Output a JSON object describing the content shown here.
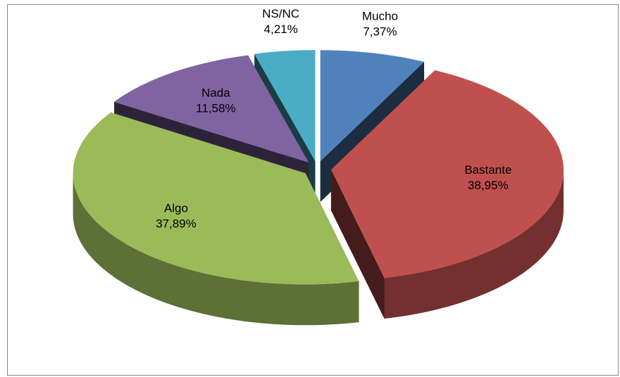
{
  "chart_data": {
    "type": "pie3d",
    "categories": [
      "Mucho",
      "Bastante",
      "Algo",
      "Nada",
      "NS/NC"
    ],
    "values": [
      7.37,
      38.95,
      37.89,
      11.58,
      4.21
    ],
    "value_labels": [
      "7,37%",
      "38,95%",
      "37,89%",
      "11,58%",
      "4,21%"
    ],
    "colors": [
      "#4f81bd",
      "#c0504d",
      "#9bbb59",
      "#8064a2",
      "#4bacc6"
    ]
  }
}
